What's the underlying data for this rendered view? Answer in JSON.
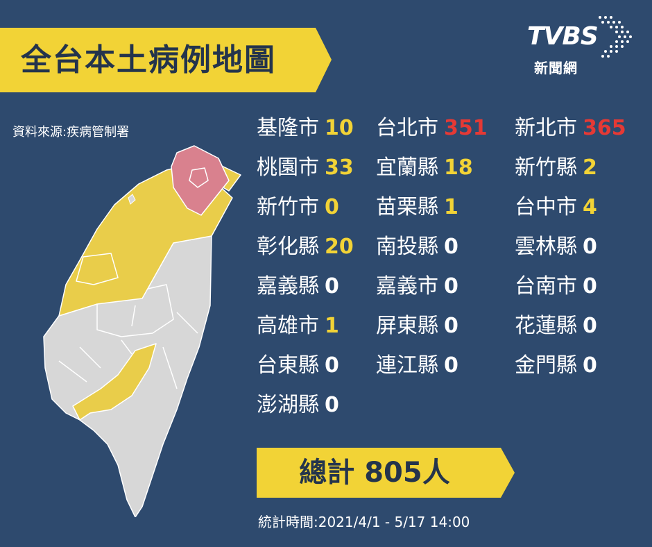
{
  "title": "全台本土病例地圖",
  "logo": {
    "word": "TVBS",
    "sub": "新聞網"
  },
  "source": "資料來源:疾病管制署",
  "colors": {
    "background": "#2e4a6e",
    "banner": "#f2d336",
    "high": "#e53935",
    "medium": "#f2d336",
    "none": "#ffffff",
    "map_red": "#d9818e",
    "map_yellow": "#e9cd4a",
    "map_gray": "#d7d7d7"
  },
  "counties": [
    {
      "name": "基隆市",
      "count": "10",
      "level": "yellow"
    },
    {
      "name": "台北市",
      "count": "351",
      "level": "red"
    },
    {
      "name": "新北市",
      "count": "365",
      "level": "red"
    },
    {
      "name": "桃園市",
      "count": "33",
      "level": "yellow"
    },
    {
      "name": "宜蘭縣",
      "count": "18",
      "level": "yellow"
    },
    {
      "name": "新竹縣",
      "count": "2",
      "level": "yellow"
    },
    {
      "name": "新竹市",
      "count": "0",
      "level": "yellow"
    },
    {
      "name": "苗栗縣",
      "count": "1",
      "level": "yellow"
    },
    {
      "name": "台中市",
      "count": "4",
      "level": "yellow"
    },
    {
      "name": "彰化縣",
      "count": "20",
      "level": "yellow"
    },
    {
      "name": "南投縣",
      "count": "0",
      "level": "white"
    },
    {
      "name": "雲林縣",
      "count": "0",
      "level": "white"
    },
    {
      "name": "嘉義縣",
      "count": "0",
      "level": "white"
    },
    {
      "name": "嘉義市",
      "count": "0",
      "level": "white"
    },
    {
      "name": "台南市",
      "count": "0",
      "level": "white"
    },
    {
      "name": "高雄市",
      "count": "1",
      "level": "yellow"
    },
    {
      "name": "屏東縣",
      "count": "0",
      "level": "white"
    },
    {
      "name": "花蓮縣",
      "count": "0",
      "level": "white"
    },
    {
      "name": "台東縣",
      "count": "0",
      "level": "white"
    },
    {
      "name": "連江縣",
      "count": "0",
      "level": "white"
    },
    {
      "name": "金門縣",
      "count": "0",
      "level": "white"
    },
    {
      "name": "澎湖縣",
      "count": "0",
      "level": "white"
    }
  ],
  "total": "總計 805人",
  "stats_time": "統計時間:2021/4/1 - 5/17 14:00"
}
